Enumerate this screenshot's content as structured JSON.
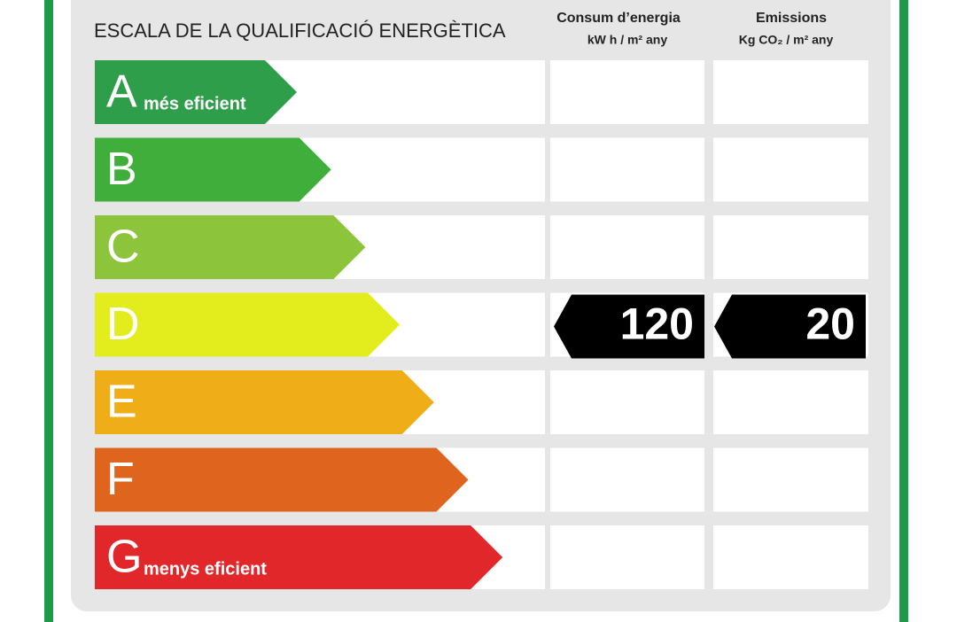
{
  "header": {
    "title": "ESCALA DE LA QUALIFICACIÓ ENERGÈTICA",
    "columns": [
      {
        "title": "Consum d’energia",
        "unit": "kW h / m² any"
      },
      {
        "title": "Emissions",
        "unit": "Kg CO₂ / m² any"
      }
    ]
  },
  "rows": [
    {
      "letter": "A",
      "label": "més eficient",
      "color": "#2f9e4a"
    },
    {
      "letter": "B",
      "color": "#3fae3b"
    },
    {
      "letter": "C",
      "color": "#8cc43b"
    },
    {
      "letter": "D",
      "color": "#e3ec1d",
      "consum": 120,
      "emissions": 20
    },
    {
      "letter": "E",
      "color": "#efae18"
    },
    {
      "letter": "F",
      "color": "#df651f"
    },
    {
      "letter": "G",
      "label": "menys eficient",
      "color": "#e2272b"
    }
  ]
}
